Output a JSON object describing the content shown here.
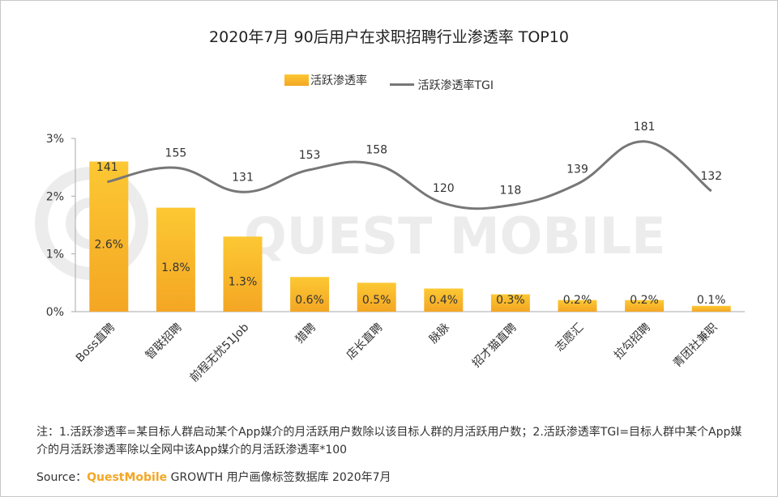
{
  "title": "2020年7月 90后用户在求职招聘行业渗透率 TOP10",
  "legend": {
    "bar_label": "活跃渗透率",
    "line_label": "活跃渗透率TGI"
  },
  "watermark": "QUEST MOBILE",
  "notes": "注：1.活跃渗透率=某目标人群启动某个App媒介的月活跃用户数除以该目标人群的月活跃用户数；2.活跃渗透率TGI=目标人群中某个App媒介的月活跃渗透率除以全网中该App媒介的月活跃渗透率*100",
  "source": {
    "prefix": "Source：",
    "brand": "QuestMobile",
    "suffix": " GROWTH 用户画像标签数据库 2020年7月"
  },
  "colors": {
    "bar_top": "#fcc833",
    "bar_bottom": "#f4a623",
    "line": "#777777",
    "axis": "#aaaaaa",
    "watermark": "#ececec"
  },
  "chart_data": {
    "type": "bar",
    "title": "2020年7月 90后用户在求职招聘行业渗透率 TOP10",
    "categories": [
      "Boss直聘",
      "智联招聘",
      "前程无忧51Job",
      "猎聘",
      "店长直聘",
      "脉脉",
      "招才猫直聘",
      "志愿汇",
      "拉勾招聘",
      "青团社兼职"
    ],
    "series": [
      {
        "name": "活跃渗透率",
        "type": "bar",
        "values": [
          2.6,
          1.8,
          1.3,
          0.6,
          0.5,
          0.4,
          0.3,
          0.2,
          0.2,
          0.1
        ],
        "labels": [
          "2.6%",
          "1.8%",
          "1.3%",
          "0.6%",
          "0.5%",
          "0.4%",
          "0.3%",
          "0.2%",
          "0.2%",
          "0.1%"
        ]
      },
      {
        "name": "活跃渗透率TGI",
        "type": "line",
        "values": [
          141,
          155,
          131,
          153,
          158,
          120,
          118,
          139,
          181,
          132
        ]
      }
    ],
    "y_ticks": [
      "0%",
      "1%",
      "2%",
      "3%"
    ],
    "ylim": [
      0,
      3
    ],
    "legend_position": "top-center",
    "grid": false
  }
}
